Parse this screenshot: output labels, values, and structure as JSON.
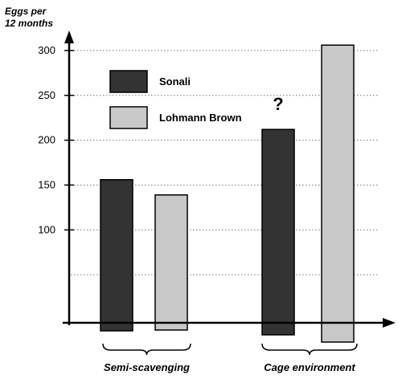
{
  "chart_data": {
    "type": "bar",
    "ylabel": "Eggs per\n12 months",
    "xlabel": "",
    "y_ticks": [
      100,
      150,
      200,
      250,
      300
    ],
    "ylim": [
      0,
      330
    ],
    "grid": "horizontal dotted",
    "legend_position": "top-left",
    "groups": [
      "Semi-scavenging",
      "Cage environment"
    ],
    "series": [
      {
        "name": "Sonali",
        "color": "#333333",
        "values": [
          156,
          212
        ]
      },
      {
        "name": "Lohmann Brown",
        "color": "#c8c8c8",
        "values": [
          139,
          306
        ]
      }
    ],
    "annotations": [
      {
        "text": "?",
        "group": "Cage environment",
        "series": "Sonali"
      }
    ]
  }
}
